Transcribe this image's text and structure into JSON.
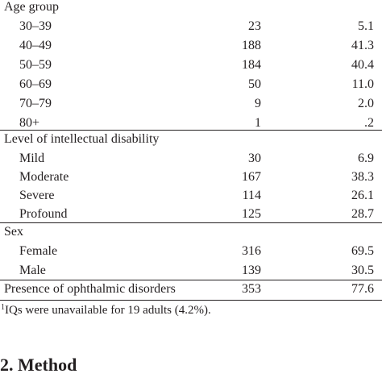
{
  "table": {
    "sections": [
      {
        "title": "Age group",
        "rows": [
          {
            "label": "30–39",
            "n": "23",
            "pct": "5.1"
          },
          {
            "label": "40–49",
            "n": "188",
            "pct": "41.3"
          },
          {
            "label": "50–59",
            "n": "184",
            "pct": "40.4"
          },
          {
            "label": "60–69",
            "n": "50",
            "pct": "11.0"
          },
          {
            "label": "70–79",
            "n": "9",
            "pct": "2.0"
          },
          {
            "label": "80+",
            "n": "1",
            "pct": ".2"
          }
        ]
      },
      {
        "title": "Level of intellectual disability",
        "rows": [
          {
            "label": "Mild",
            "n": "30",
            "pct": "6.9"
          },
          {
            "label": "Moderate",
            "n": "167",
            "pct": "38.3"
          },
          {
            "label": "Severe",
            "n": "114",
            "pct": "26.1"
          },
          {
            "label": "Profound",
            "n": "125",
            "pct": "28.7"
          }
        ]
      },
      {
        "title": "Sex",
        "rows": [
          {
            "label": "Female",
            "n": "316",
            "pct": "69.5"
          },
          {
            "label": "Male",
            "n": "139",
            "pct": "30.5"
          }
        ]
      }
    ],
    "summary_row": {
      "label": "Presence of ophthalmic disorders",
      "n": "353",
      "pct": "77.6"
    }
  },
  "footnote": {
    "marker": "1",
    "text": "IQs were unavailable for 19 adults (4.2%)."
  },
  "section_heading": "2. Method"
}
